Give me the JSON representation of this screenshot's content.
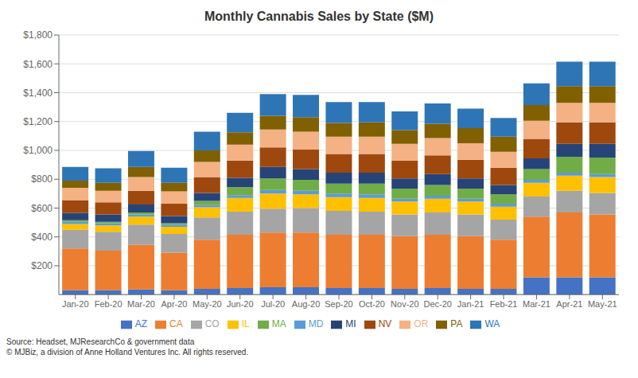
{
  "chart_data": {
    "type": "bar",
    "title": "Monthly Cannabis Sales by State ($M)",
    "annotations": [
      "Source: Headset, MJResearchCo & government data\n© MJBiz, a division of Anne Holland Ventures Inc. All rights reserved."
    ],
    "categories": [
      "Jan-20",
      "Feb-20",
      "Mar-20",
      "Apr-20",
      "May-20",
      "Jun-20",
      "Jul-20",
      "Aug-20",
      "Sep-20",
      "Oct-20",
      "Nov-20",
      "Dec-20",
      "Jan-21",
      "Feb-21",
      "Mar-21",
      "Apr-21",
      "May-21"
    ],
    "series": [
      {
        "name": "AZ",
        "color": "#4472c4",
        "values": [
          30,
          30,
          35,
          30,
          40,
          45,
          50,
          50,
          45,
          45,
          40,
          45,
          40,
          40,
          120,
          120,
          120
        ]
      },
      {
        "name": "CA",
        "color": "#ed7d31",
        "values": [
          290,
          275,
          310,
          260,
          340,
          370,
          380,
          380,
          370,
          370,
          365,
          370,
          365,
          340,
          420,
          450,
          435
        ]
      },
      {
        "name": "CO",
        "color": "#a5a5a5",
        "values": [
          130,
          130,
          140,
          130,
          155,
          160,
          165,
          170,
          165,
          160,
          150,
          155,
          150,
          140,
          140,
          150,
          150
        ]
      },
      {
        "name": "IL",
        "color": "#ffc000",
        "values": [
          40,
          45,
          55,
          50,
          70,
          95,
          105,
          95,
          95,
          95,
          90,
          95,
          90,
          90,
          95,
          105,
          110
        ]
      },
      {
        "name": "MD",
        "color": "#5b9bd5",
        "values": [
          15,
          15,
          15,
          15,
          15,
          20,
          25,
          25,
          25,
          25,
          20,
          20,
          20,
          20,
          20,
          20,
          20
        ]
      },
      {
        "name": "MA",
        "color": "#70ad47",
        "values": [
          10,
          10,
          15,
          10,
          30,
          55,
          80,
          75,
          70,
          75,
          70,
          75,
          70,
          65,
          75,
          110,
          115
        ]
      },
      {
        "name": "MI",
        "color": "#264478",
        "values": [
          50,
          50,
          55,
          50,
          55,
          65,
          80,
          75,
          75,
          75,
          70,
          75,
          70,
          65,
          75,
          90,
          95
        ]
      },
      {
        "name": "NV",
        "color": "#9e480e",
        "values": [
          90,
          85,
          95,
          85,
          110,
          120,
          135,
          135,
          130,
          130,
          125,
          130,
          130,
          120,
          135,
          150,
          150
        ]
      },
      {
        "name": "OR",
        "color": "#f4b183",
        "values": [
          85,
          80,
          95,
          85,
          105,
          110,
          125,
          125,
          120,
          120,
          115,
          120,
          115,
          110,
          125,
          135,
          135
        ]
      },
      {
        "name": "PA",
        "color": "#806000",
        "values": [
          50,
          55,
          70,
          60,
          80,
          85,
          95,
          100,
          95,
          100,
          95,
          100,
          105,
          105,
          110,
          115,
          115
        ]
      },
      {
        "name": "WA",
        "color": "#2e75b6",
        "values": [
          95,
          100,
          110,
          105,
          130,
          135,
          150,
          155,
          145,
          140,
          130,
          140,
          135,
          130,
          150,
          170,
          170
        ]
      }
    ],
    "ylim": [
      0,
      1800
    ],
    "yticks": [
      {
        "value": 200,
        "label": "$200"
      },
      {
        "value": 400,
        "label": "$400"
      },
      {
        "value": 600,
        "label": "$600"
      },
      {
        "value": 800,
        "label": "$800"
      },
      {
        "value": 1000,
        "label": "$1,000"
      },
      {
        "value": 1200,
        "label": "$1,200"
      },
      {
        "value": 1400,
        "label": "$1,400"
      },
      {
        "value": 1600,
        "label": "$1,600"
      },
      {
        "value": 1800,
        "label": "$1,800"
      }
    ],
    "stacked": true,
    "grid": true,
    "legend": "bottom"
  }
}
